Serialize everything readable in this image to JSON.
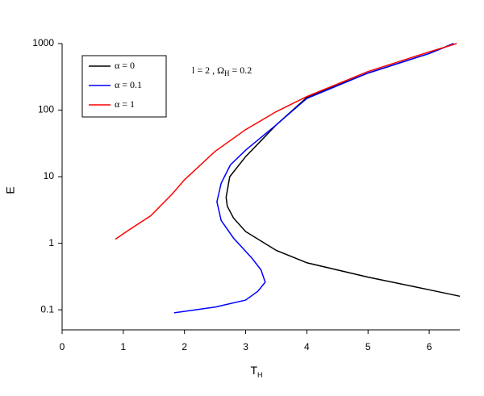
{
  "chart_data": {
    "type": "line",
    "xlabel": {
      "text": "T",
      "sub": "H"
    },
    "ylabel": "E",
    "annotation": {
      "text": "l = 2 ,  Ω",
      "sub": "H",
      "tail": "= 0.2"
    },
    "xlim": [
      0,
      6.5
    ],
    "xticks": [
      0,
      1,
      2,
      3,
      4,
      5,
      6
    ],
    "ylim": [
      0.05,
      1000
    ],
    "yticks": [
      0.1,
      1,
      10,
      100,
      1000
    ],
    "log_y": true,
    "grid": false,
    "legend": "upper left",
    "series": [
      {
        "name": "α = 0",
        "color": "#000000",
        "x": [
          6.5,
          6,
          5,
          4,
          3.5,
          3,
          2.8,
          2.7,
          2.68,
          2.74,
          3,
          3.5,
          4,
          5,
          6,
          6.4
        ],
        "values": [
          0.16,
          0.2,
          0.31,
          0.51,
          0.78,
          1.5,
          2.4,
          3.6,
          4.9,
          10,
          20,
          60,
          155,
          360,
          710,
          1000
        ]
      },
      {
        "name": "α = 0.1",
        "color": "#0000ff",
        "x": [
          1.83,
          2.5,
          3,
          3.2,
          3.32,
          3.25,
          3.1,
          2.8,
          2.6,
          2.53,
          2.6,
          2.75,
          3,
          3.5,
          4,
          5,
          6,
          6.4
        ],
        "values": [
          0.09,
          0.11,
          0.14,
          0.19,
          0.26,
          0.4,
          0.6,
          1.2,
          2.2,
          4.2,
          8,
          15,
          25,
          60,
          150,
          360,
          710,
          1000
        ]
      },
      {
        "name": "α = 1",
        "color": "#ff0000",
        "x": [
          0.87,
          1.1,
          1.45,
          1.8,
          2,
          2.5,
          3,
          3.5,
          4,
          5,
          6,
          6.45
        ],
        "values": [
          1.15,
          1.6,
          2.6,
          5.5,
          9,
          24,
          51,
          95,
          160,
          380,
          750,
          1000
        ]
      }
    ]
  }
}
